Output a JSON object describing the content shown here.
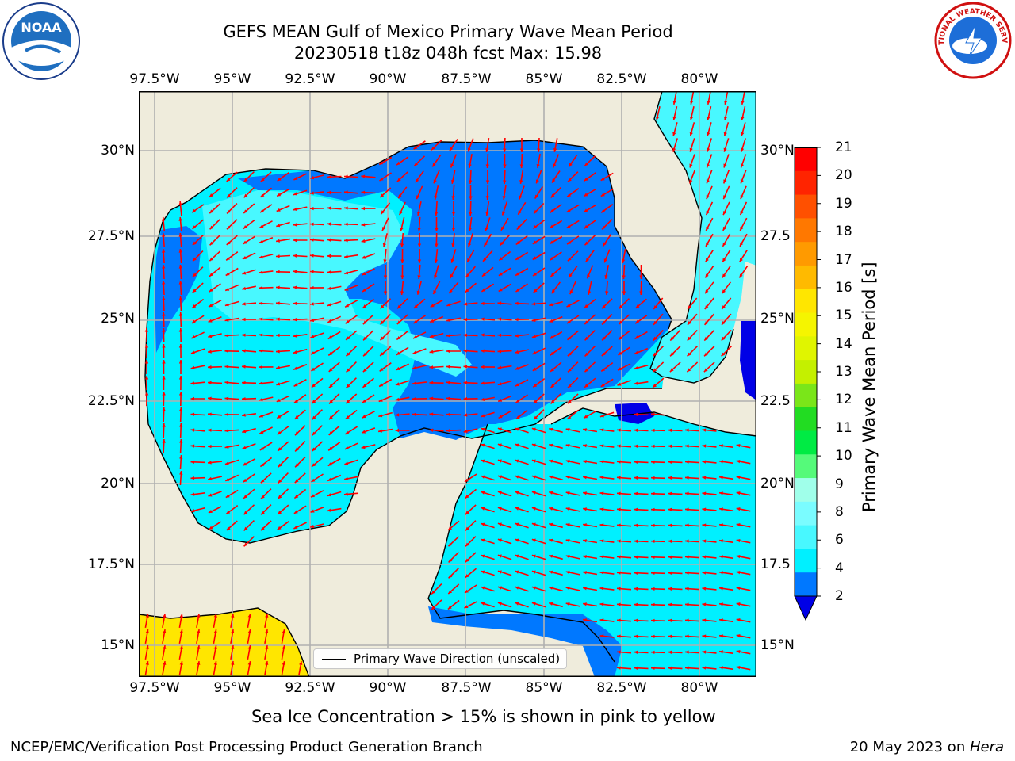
{
  "title": {
    "line1": "GEFS MEAN Gulf of Mexico Primary Wave Mean Period",
    "line2": "20230518 t18z 048h fcst   Max: 15.98"
  },
  "map": {
    "lon_labels": [
      "97.5°W",
      "95°W",
      "92.5°W",
      "90°W",
      "87.5°W",
      "85°W",
      "82.5°W",
      "80°W"
    ],
    "lat_labels": [
      "30°N",
      "27.5°N",
      "25°N",
      "22.5°N",
      "20°N",
      "17.5°N",
      "15°N"
    ],
    "right_lat_labels": [
      "30°N",
      "27.5",
      "25°N",
      "22.5",
      "20°N",
      "17.5",
      "15°N"
    ],
    "land_color": "#efecdc",
    "arrow_color": "#ff0000"
  },
  "legend": {
    "label": "Primary Wave Direction (unscaled)"
  },
  "colorbar": {
    "title": "Primary Wave Mean Period [s]",
    "ticks": [
      "21",
      "20",
      "19",
      "18",
      "17",
      "16",
      "15",
      "14",
      "13",
      "12",
      "11",
      "10",
      "9",
      "8",
      "6",
      "4",
      "2"
    ],
    "colors": [
      "#ff0000",
      "#ff2400",
      "#ff5000",
      "#ff7800",
      "#ff9a00",
      "#ffba00",
      "#ffe600",
      "#f5f500",
      "#e0f500",
      "#c4f000",
      "#7ae619",
      "#22dc22",
      "#00eb44",
      "#55fa7a",
      "#a0ffea",
      "#7afcff",
      "#48f8ff",
      "#00f0ff",
      "#0078ff",
      "#0000e6"
    ]
  },
  "note": "Sea Ice Concentration > 15% is shown in pink to yellow",
  "footer": {
    "left": "NCEP/EMC/Verification Post Processing Product Generation Branch",
    "right_date": "20 May 2023 on ",
    "right_host": "Hera"
  },
  "logos": {
    "left": "NOAA",
    "right": "NATIONAL WEATHER SERVICE"
  }
}
